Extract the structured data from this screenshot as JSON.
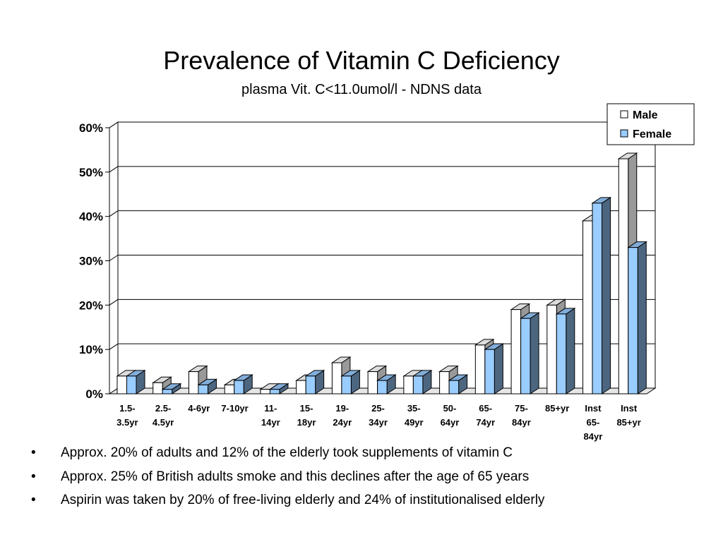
{
  "slide": {
    "title": "Prevalence of Vitamin C Deficiency",
    "subtitle": "plasma Vit. C<11.0umol/l - NDNS data",
    "bullet_glyph": "•",
    "bullets": [
      "Approx. 20% of adults and 12% of the elderly took supplements of vitamin C",
      "Approx. 25% of British adults smoke and this declines after the age of 65 years",
      "Aspirin was taken by 20% of free-living elderly and 24% of institutionalised elderly"
    ]
  },
  "chart_data": {
    "type": "bar",
    "title": "Prevalence of Vitamin C Deficiency",
    "subtitle": "plasma Vit. C<11.0umol/l - NDNS data",
    "categories": [
      [
        "1.5-",
        "3.5yr"
      ],
      [
        "2.5-",
        "4.5yr"
      ],
      [
        "4-6yr"
      ],
      [
        "7-10yr"
      ],
      [
        "11-",
        "14yr"
      ],
      [
        "15-",
        "18yr"
      ],
      [
        "19-",
        "24yr"
      ],
      [
        "25-",
        "34yr"
      ],
      [
        "35-",
        "49yr"
      ],
      [
        "50-",
        "64yr"
      ],
      [
        "65-",
        "74yr"
      ],
      [
        "75-",
        "84yr"
      ],
      [
        "85+yr"
      ],
      [
        "Inst",
        "65-",
        "84yr"
      ],
      [
        "Inst",
        "85+yr"
      ]
    ],
    "series": [
      {
        "name": "Male",
        "color": "#ffffff",
        "values": [
          4,
          2.5,
          5,
          2,
          1,
          3,
          7,
          5,
          4,
          5,
          11,
          19,
          20,
          39,
          53
        ]
      },
      {
        "name": "Female",
        "color": "#99ccff",
        "values": [
          4,
          1,
          2,
          3,
          1,
          4,
          4,
          3,
          4,
          3,
          10,
          17,
          18,
          43,
          33
        ]
      }
    ],
    "y_ticks": [
      "0%",
      "10%",
      "20%",
      "30%",
      "40%",
      "50%",
      "60%"
    ],
    "ylim": [
      0,
      60
    ],
    "y_unit": "percent",
    "grid": true,
    "legend_position": "top-right",
    "style": "3d-clustered-column"
  }
}
